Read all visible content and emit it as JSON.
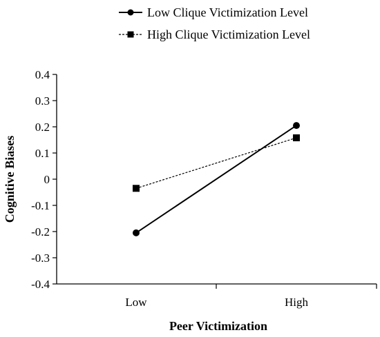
{
  "chart_data": {
    "type": "line",
    "xlabel": "Peer Victimization",
    "ylabel": "Cognitive Biases",
    "categories": [
      "Low",
      "High"
    ],
    "ylim": [
      -0.4,
      0.4
    ],
    "yticks": [
      "0.4",
      "0.3",
      "0.2",
      "0.1",
      "0",
      "-0.1",
      "-0.2",
      "-0.3",
      "-0.4"
    ],
    "ytick_values": [
      0.4,
      0.3,
      0.2,
      0.1,
      0,
      -0.1,
      -0.2,
      -0.3,
      -0.4
    ],
    "grid": false,
    "legend_position": "top-center",
    "series": [
      {
        "name": "Low Clique Victimization Level",
        "values": [
          -0.205,
          0.205
        ],
        "marker": "circle",
        "line_style": "solid",
        "color": "#000000"
      },
      {
        "name": "High Clique Victimization Level",
        "values": [
          -0.035,
          0.158
        ],
        "marker": "square",
        "line_style": "dashed",
        "color": "#000000"
      }
    ]
  }
}
